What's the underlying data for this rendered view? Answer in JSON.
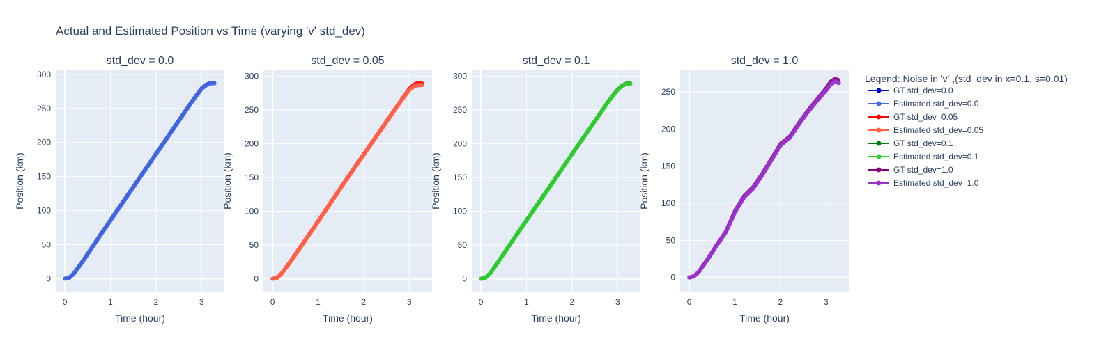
{
  "title": "Actual and Estimated Position vs Time (varying 'v' std_dev)",
  "legend_title": "Legend: Noise in 'v' ,(std_dev in x=0.1, s=0.01)",
  "legend_placement": "right",
  "colors": {
    "plot_bg": "#e5ecf6",
    "grid": "#ffffff",
    "text": "#2a3f5f"
  },
  "chart_data": [
    {
      "type": "line",
      "title": "std_dev = 0.0",
      "xlabel": "Time (hour)",
      "ylabel": "Position (km)",
      "xlim": [
        -0.2,
        3.5
      ],
      "ylim": [
        -20,
        307
      ],
      "xticks": [
        0,
        1,
        2,
        3
      ],
      "yticks": [
        0,
        50,
        100,
        150,
        200,
        250,
        300
      ],
      "grid": true,
      "series": [
        {
          "name": "GT std_dev=0.0",
          "color": "#0000cd",
          "x": [
            0,
            0.1,
            0.2,
            0.4,
            0.8,
            1.2,
            1.6,
            2.0,
            2.4,
            2.8,
            3.0,
            3.1,
            3.2,
            3.28
          ],
          "y": [
            0,
            1.5,
            8,
            27,
            67,
            106,
            145,
            184,
            223,
            262,
            280,
            285,
            288,
            288
          ]
        },
        {
          "name": "Estimated std_dev=0.0",
          "color": "#4169e1",
          "x": [
            0,
            0.1,
            0.2,
            0.4,
            0.8,
            1.2,
            1.6,
            2.0,
            2.4,
            2.8,
            3.0,
            3.1,
            3.2,
            3.28
          ],
          "y": [
            0,
            1.5,
            8,
            26,
            66,
            105,
            144,
            183,
            222,
            261,
            279,
            284,
            287,
            287
          ]
        }
      ]
    },
    {
      "type": "line",
      "title": "std_dev = 0.05",
      "xlabel": "Time (hour)",
      "ylabel": "Position (km)",
      "xlim": [
        -0.2,
        3.5
      ],
      "ylim": [
        -20,
        310
      ],
      "xticks": [
        0,
        1,
        2,
        3
      ],
      "yticks": [
        0,
        50,
        100,
        150,
        200,
        250,
        300
      ],
      "grid": true,
      "series": [
        {
          "name": "GT std_dev=0.05",
          "color": "#ff0000",
          "x": [
            0,
            0.1,
            0.2,
            0.4,
            0.8,
            1.2,
            1.6,
            2.0,
            2.4,
            2.8,
            3.0,
            3.1,
            3.2,
            3.28
          ],
          "y": [
            0,
            1.5,
            8,
            27,
            66,
            106,
            146,
            185,
            224,
            263,
            282,
            288,
            291,
            290
          ]
        },
        {
          "name": "Estimated std_dev=0.05",
          "color": "#ff6347",
          "x": [
            0,
            0.1,
            0.2,
            0.4,
            0.8,
            1.2,
            1.6,
            2.0,
            2.4,
            2.8,
            3.0,
            3.1,
            3.2,
            3.28
          ],
          "y": [
            0,
            1.5,
            8,
            26,
            65,
            105,
            145,
            184,
            223,
            262,
            280,
            285,
            287,
            287
          ]
        }
      ]
    },
    {
      "type": "line",
      "title": "std_dev = 0.1",
      "xlabel": "Time (hour)",
      "ylabel": "Position (km)",
      "xlim": [
        -0.2,
        3.5
      ],
      "ylim": [
        -20,
        310
      ],
      "xticks": [
        0,
        1,
        2,
        3
      ],
      "yticks": [
        0,
        50,
        100,
        150,
        200,
        250,
        300
      ],
      "grid": true,
      "series": [
        {
          "name": "GT std_dev=0.1",
          "color": "#008000",
          "x": [
            0,
            0.1,
            0.2,
            0.4,
            0.8,
            1.2,
            1.6,
            2.0,
            2.4,
            2.8,
            3.0,
            3.1,
            3.2,
            3.28
          ],
          "y": [
            0,
            1.5,
            8,
            27,
            67,
            107,
            146,
            185,
            224,
            264,
            281,
            287,
            290,
            290
          ]
        },
        {
          "name": "Estimated std_dev=0.1",
          "color": "#32cd32",
          "x": [
            0,
            0.1,
            0.2,
            0.4,
            0.8,
            1.2,
            1.6,
            2.0,
            2.4,
            2.8,
            3.0,
            3.1,
            3.2,
            3.28
          ],
          "y": [
            0,
            1.5,
            8,
            27,
            67,
            106,
            145,
            185,
            224,
            263,
            280,
            286,
            289,
            289
          ]
        }
      ]
    },
    {
      "type": "line",
      "title": "std_dev = 1.0",
      "xlabel": "Time (hour)",
      "ylabel": "Position (km)",
      "xlim": [
        -0.2,
        3.5
      ],
      "ylim": [
        -20,
        280
      ],
      "xticks": [
        0,
        1,
        2,
        3
      ],
      "yticks": [
        0,
        50,
        100,
        150,
        200,
        250
      ],
      "grid": true,
      "series": [
        {
          "name": "GT std_dev=1.0",
          "color": "#800080",
          "x": [
            0,
            0.1,
            0.2,
            0.4,
            0.6,
            0.8,
            1.0,
            1.2,
            1.4,
            1.6,
            1.8,
            2.0,
            2.2,
            2.4,
            2.6,
            2.8,
            3.0,
            3.1,
            3.2,
            3.28
          ],
          "y": [
            0,
            1.5,
            7,
            25,
            44,
            62,
            90,
            110,
            122,
            140,
            160,
            180,
            190,
            208,
            225,
            240,
            255,
            264,
            268,
            266
          ]
        },
        {
          "name": "Estimated std_dev=1.0",
          "color": "#9932cc",
          "x": [
            0,
            0.1,
            0.2,
            0.4,
            0.6,
            0.8,
            1.0,
            1.2,
            1.4,
            1.6,
            1.8,
            2.0,
            2.2,
            2.4,
            2.6,
            2.8,
            3.0,
            3.1,
            3.2,
            3.28
          ],
          "y": [
            0,
            1.5,
            7,
            24,
            43,
            61,
            88,
            108,
            120,
            138,
            158,
            178,
            188,
            206,
            223,
            238,
            252,
            260,
            264,
            262
          ]
        }
      ]
    }
  ]
}
